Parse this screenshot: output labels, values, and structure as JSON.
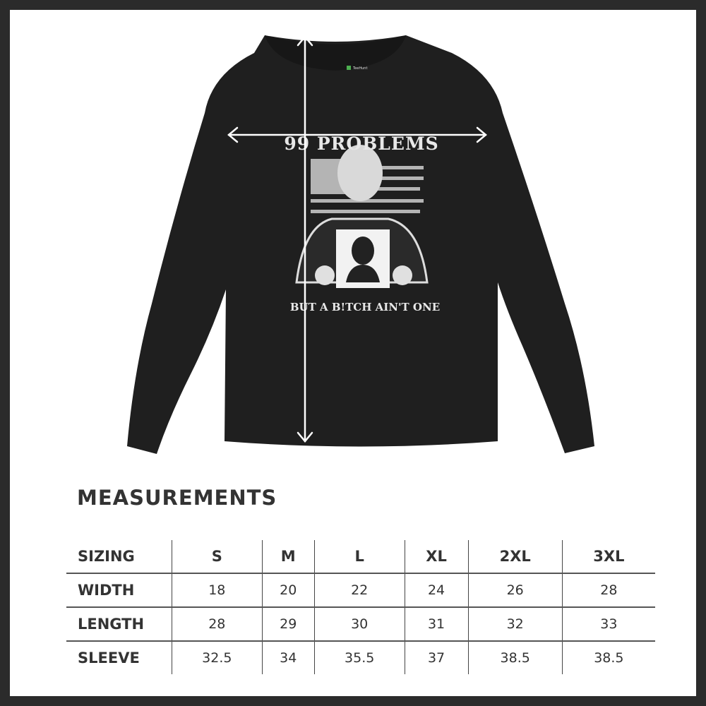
{
  "shirt": {
    "brand_tag": "TeeHunt",
    "print_top": "99 PROBLEMS",
    "print_bottom": "BUT A B!TCH AIN'T ONE",
    "color": "#1f1f1f"
  },
  "measurements": {
    "title": "MEASUREMENTS",
    "header": [
      "SIZING",
      "S",
      "M",
      "L",
      "XL",
      "2XL",
      "3XL"
    ],
    "rows": [
      [
        "WIDTH",
        "18",
        "20",
        "22",
        "24",
        "26",
        "28"
      ],
      [
        "LENGTH",
        "28",
        "29",
        "30",
        "31",
        "32",
        "33"
      ],
      [
        "SLEEVE",
        "32.5",
        "34",
        "35.5",
        "37",
        "38.5",
        "38.5"
      ]
    ]
  }
}
